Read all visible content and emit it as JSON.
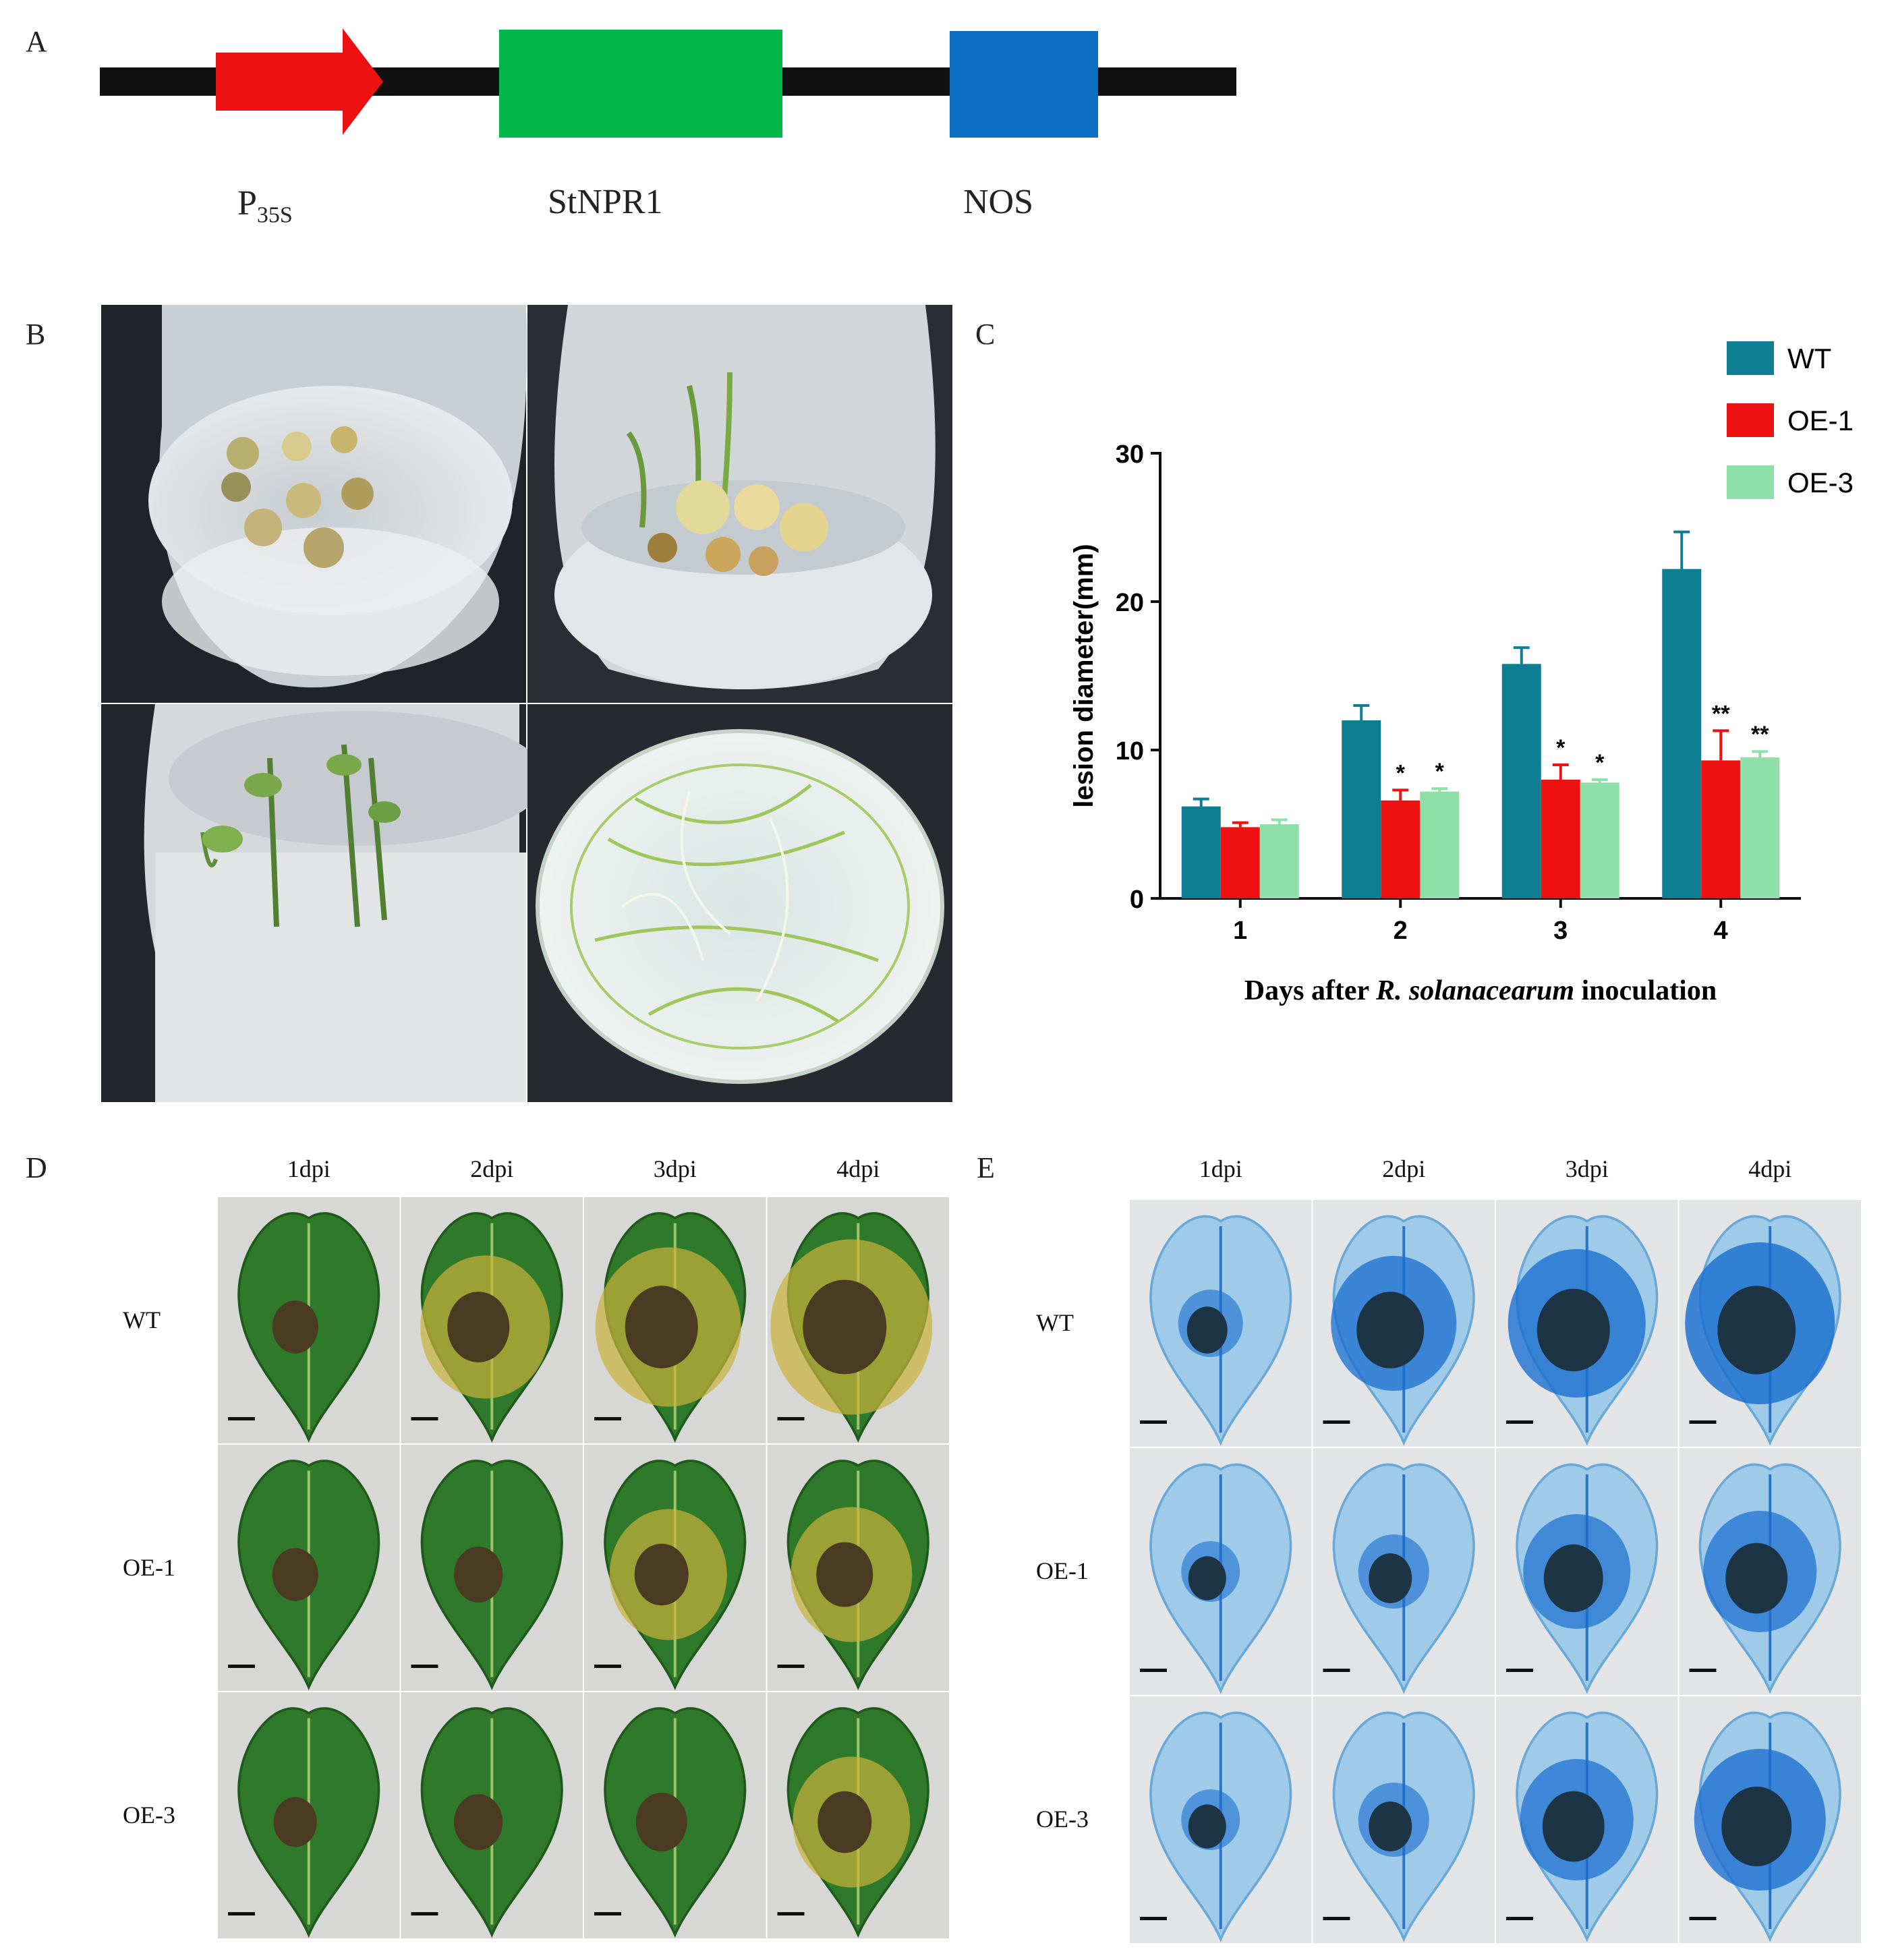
{
  "panels": {
    "A": {
      "letter": "A",
      "construct": [
        {
          "name": "promoter",
          "label": "P",
          "label_sub": "35S",
          "color": "#ee1111"
        },
        {
          "name": "gene",
          "label": "StNPR1",
          "color": "#00b84a"
        },
        {
          "name": "terminator",
          "label": "NOS",
          "color": "#0a6fc4"
        }
      ]
    },
    "B": {
      "letter": "B"
    },
    "C": {
      "letter": "C"
    },
    "D": {
      "letter": "D",
      "columns": [
        "1dpi",
        "2dpi",
        "3dpi",
        "4dpi"
      ],
      "rows": [
        "WT",
        "OE-1",
        "OE-3"
      ]
    },
    "E": {
      "letter": "E",
      "columns": [
        "1dpi",
        "2dpi",
        "3dpi",
        "4dpi"
      ],
      "rows": [
        "WT",
        "OE-1",
        "OE-3"
      ]
    }
  },
  "chart_data": {
    "type": "bar",
    "categories": [
      "1",
      "2",
      "3",
      "4"
    ],
    "series": [
      {
        "name": "WT",
        "values": [
          6.2,
          12.0,
          15.8,
          22.2
        ],
        "errors": [
          0.5,
          1.0,
          1.1,
          2.5
        ],
        "sig": [
          "",
          "",
          "",
          ""
        ],
        "color": "#0e7f92"
      },
      {
        "name": "OE-1",
        "values": [
          4.8,
          6.6,
          8.0,
          9.3
        ],
        "errors": [
          0.3,
          0.7,
          1.0,
          2.0
        ],
        "sig": [
          "",
          "*",
          "*",
          "**"
        ],
        "color": "#ee1111"
      },
      {
        "name": "OE-3",
        "values": [
          5.0,
          7.2,
          7.8,
          9.5
        ],
        "errors": [
          0.3,
          0.2,
          0.2,
          0.4
        ],
        "sig": [
          "",
          "*",
          "*",
          "**"
        ],
        "color": "#8fe0a8"
      }
    ],
    "ylim": [
      0,
      30
    ],
    "yticks": [
      0,
      10,
      20,
      30
    ],
    "ylabel": "lesion diameter(mm)",
    "xlabel_pre": "Days after ",
    "xlabel_italic": "R. solanacearum",
    "xlabel_post": " inoculation",
    "legend_position": "top-right"
  }
}
